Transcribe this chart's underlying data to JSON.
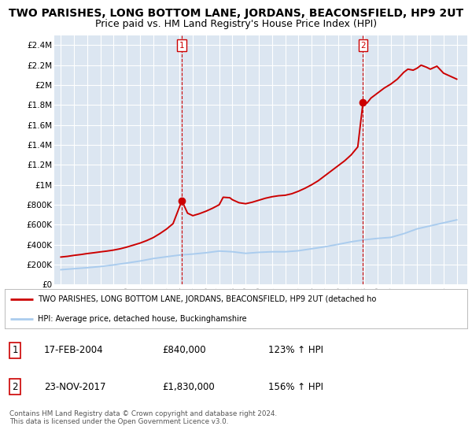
{
  "title": "TWO PARISHES, LONG BOTTOM LANE, JORDANS, BEACONSFIELD, HP9 2UT",
  "subtitle": "Price paid vs. HM Land Registry's House Price Index (HPI)",
  "title_fontsize": 10,
  "subtitle_fontsize": 9,
  "background_color": "#ffffff",
  "plot_bg_color": "#dce6f1",
  "grid_color": "#ffffff",
  "red_line_color": "#cc0000",
  "blue_line_color": "#aaccee",
  "ylim": [
    0,
    2500000
  ],
  "yticks": [
    0,
    200000,
    400000,
    600000,
    800000,
    1000000,
    1200000,
    1400000,
    1600000,
    1800000,
    2000000,
    2200000,
    2400000
  ],
  "ytick_labels": [
    "£0",
    "£200K",
    "£400K",
    "£600K",
    "£800K",
    "£1M",
    "£1.2M",
    "£1.4M",
    "£1.6M",
    "£1.8M",
    "£2M",
    "£2.2M",
    "£2.4M"
  ],
  "xlim_left": 1994.5,
  "xlim_right": 2025.8,
  "red_years": [
    1995.0,
    1995.5,
    1996.0,
    1996.5,
    1997.0,
    1997.5,
    1998.0,
    1998.5,
    1999.0,
    1999.5,
    2000.0,
    2000.5,
    2001.0,
    2001.5,
    2002.0,
    2002.5,
    2003.0,
    2003.5,
    2004.17,
    2004.6,
    2005.0,
    2005.5,
    2006.0,
    2006.5,
    2007.0,
    2007.3,
    2007.8,
    2008.0,
    2008.5,
    2009.0,
    2009.5,
    2010.0,
    2010.5,
    2011.0,
    2011.5,
    2012.0,
    2012.5,
    2013.0,
    2013.5,
    2014.0,
    2014.5,
    2015.0,
    2015.5,
    2016.0,
    2016.5,
    2017.0,
    2017.5,
    2017.9,
    2018.2,
    2018.5,
    2019.0,
    2019.5,
    2020.0,
    2020.5,
    2021.0,
    2021.3,
    2021.7,
    2022.0,
    2022.3,
    2022.7,
    2023.0,
    2023.5,
    2024.0,
    2024.5,
    2025.0
  ],
  "red_values": [
    275000,
    282000,
    292000,
    300000,
    310000,
    318000,
    327000,
    335000,
    345000,
    358000,
    375000,
    395000,
    415000,
    440000,
    470000,
    510000,
    555000,
    610000,
    840000,
    715000,
    690000,
    710000,
    735000,
    765000,
    800000,
    875000,
    870000,
    850000,
    820000,
    810000,
    825000,
    845000,
    865000,
    880000,
    890000,
    895000,
    910000,
    935000,
    965000,
    1000000,
    1040000,
    1090000,
    1140000,
    1190000,
    1240000,
    1300000,
    1380000,
    1830000,
    1820000,
    1870000,
    1920000,
    1970000,
    2010000,
    2060000,
    2130000,
    2160000,
    2150000,
    2170000,
    2200000,
    2180000,
    2160000,
    2190000,
    2120000,
    2090000,
    2060000
  ],
  "blue_years": [
    1995.0,
    1996.0,
    1997.0,
    1998.0,
    1999.0,
    2000.0,
    2001.0,
    2002.0,
    2003.0,
    2004.0,
    2005.0,
    2006.0,
    2007.0,
    2008.0,
    2009.0,
    2010.0,
    2011.0,
    2012.0,
    2013.0,
    2014.0,
    2015.0,
    2016.0,
    2017.0,
    2018.0,
    2019.0,
    2020.0,
    2021.0,
    2022.0,
    2023.0,
    2024.0,
    2025.0
  ],
  "blue_values": [
    148000,
    158000,
    168000,
    180000,
    196000,
    215000,
    235000,
    260000,
    278000,
    295000,
    305000,
    318000,
    335000,
    328000,
    312000,
    322000,
    328000,
    328000,
    338000,
    358000,
    378000,
    402000,
    428000,
    448000,
    462000,
    472000,
    510000,
    558000,
    588000,
    618000,
    648000
  ],
  "sale1_x": 2004.17,
  "sale1_y": 840000,
  "sale1_label": "1",
  "sale2_x": 2017.9,
  "sale2_y": 1830000,
  "sale2_label": "2",
  "legend_red_label": "TWO PARISHES, LONG BOTTOM LANE, JORDANS, BEACONSFIELD, HP9 2UT (detached ho",
  "legend_blue_label": "HPI: Average price, detached house, Buckinghamshire",
  "table_data": [
    {
      "num": "1",
      "date": "17-FEB-2004",
      "price": "£840,000",
      "hpi": "123% ↑ HPI"
    },
    {
      "num": "2",
      "date": "23-NOV-2017",
      "price": "£1,830,000",
      "hpi": "156% ↑ HPI"
    }
  ],
  "footnote": "Contains HM Land Registry data © Crown copyright and database right 2024.\nThis data is licensed under the Open Government Licence v3.0."
}
